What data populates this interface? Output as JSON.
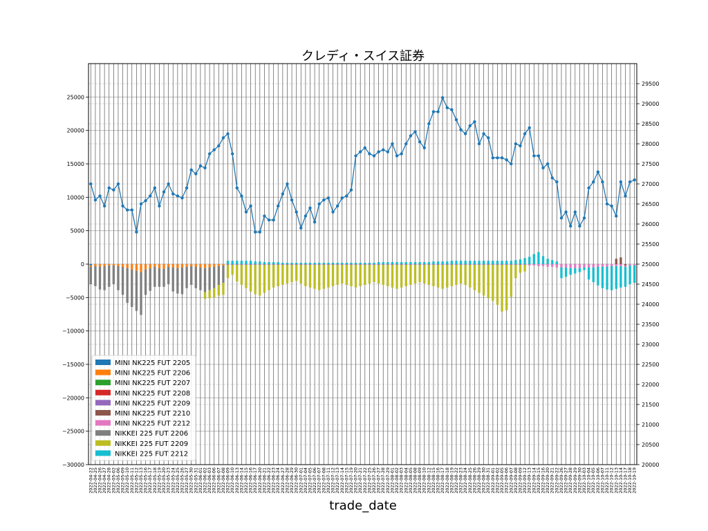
{
  "chart_data": {
    "type": "bar",
    "title": "クレディ・スイス証券",
    "xlabel": "trade_date",
    "ylabel": "",
    "ylim": [
      -30000,
      30000
    ],
    "y_ticks": [
      -30000,
      -25000,
      -20000,
      -15000,
      -10000,
      -5000,
      0,
      5000,
      10000,
      15000,
      20000,
      25000
    ],
    "y2lim": [
      20000,
      30000
    ],
    "y2_ticks": [
      20000,
      20500,
      21000,
      21500,
      22000,
      22500,
      23000,
      23500,
      24000,
      24500,
      25000,
      25500,
      26000,
      26500,
      27000,
      27500,
      28000,
      28500,
      29000,
      29500
    ],
    "grid": true,
    "stacked": true,
    "legend_position": "lower-left",
    "dates": [
      "2022-04-22",
      "2022-04-25",
      "2022-04-26",
      "2022-04-27",
      "2022-04-28",
      "2022-05-02",
      "2022-05-06",
      "2022-05-09",
      "2022-05-10",
      "2022-05-11",
      "2022-05-12",
      "2022-05-13",
      "2022-05-16",
      "2022-05-17",
      "2022-05-18",
      "2022-05-19",
      "2022-05-20",
      "2022-05-23",
      "2022-05-24",
      "2022-05-25",
      "2022-05-26",
      "2022-05-27",
      "2022-05-30",
      "2022-05-31",
      "2022-06-01",
      "2022-06-02",
      "2022-06-03",
      "2022-06-06",
      "2022-06-07",
      "2022-06-08",
      "2022-06-09",
      "2022-06-10",
      "2022-06-13",
      "2022-06-14",
      "2022-06-15",
      "2022-06-16",
      "2022-06-17",
      "2022-06-20",
      "2022-06-21",
      "2022-06-22",
      "2022-06-23",
      "2022-06-24",
      "2022-06-27",
      "2022-06-28",
      "2022-06-29",
      "2022-06-30",
      "2022-07-01",
      "2022-07-04",
      "2022-07-05",
      "2022-07-06",
      "2022-07-07",
      "2022-07-08",
      "2022-07-11",
      "2022-07-12",
      "2022-07-13",
      "2022-07-14",
      "2022-07-15",
      "2022-07-19",
      "2022-07-20",
      "2022-07-21",
      "2022-07-22",
      "2022-07-25",
      "2022-07-26",
      "2022-07-27",
      "2022-07-28",
      "2022-07-29",
      "2022-08-01",
      "2022-08-02",
      "2022-08-03",
      "2022-08-04",
      "2022-08-05",
      "2022-08-08",
      "2022-08-09",
      "2022-08-10",
      "2022-08-12",
      "2022-08-15",
      "2022-08-16",
      "2022-08-17",
      "2022-08-18",
      "2022-08-19",
      "2022-08-22",
      "2022-08-23",
      "2022-08-24",
      "2022-08-25",
      "2022-08-26",
      "2022-08-29",
      "2022-08-30",
      "2022-08-31",
      "2022-09-01",
      "2022-09-02",
      "2022-09-05",
      "2022-09-06",
      "2022-09-07",
      "2022-09-08",
      "2022-09-09",
      "2022-09-12",
      "2022-09-13",
      "2022-09-14",
      "2022-09-15",
      "2022-09-16",
      "2022-09-20",
      "2022-09-21",
      "2022-09-22",
      "2022-09-26",
      "2022-09-27",
      "2022-09-28",
      "2022-09-29",
      "2022-09-30",
      "2022-10-03",
      "2022-10-04",
      "2022-10-05",
      "2022-10-06",
      "2022-10-07",
      "2022-10-11",
      "2022-10-12",
      "2022-10-13",
      "2022-10-14",
      "2022-10-17",
      "2022-10-18",
      "2022-10-19"
    ],
    "bar_series": [
      {
        "name": "MINI NK225 FUT 2205",
        "color": "#1f77b4",
        "segments": [
          [
            0,
            1,
            [
              -200
            ]
          ]
        ]
      },
      {
        "name": "MINI NK225 FUT 2206",
        "color": "#ff7f0e",
        "segments": [
          [
            0,
            29,
            [
              -200,
              -300,
              -400,
              -300,
              -200,
              -200,
              -300,
              -400,
              -600,
              -800,
              -1000,
              -1200,
              -800,
              -600,
              -400,
              -600,
              -700,
              -400,
              -500,
              -600,
              -500,
              -400,
              -300,
              -400,
              -500,
              -600,
              -500,
              -400,
              -300,
              -200
            ]
          ]
        ]
      },
      {
        "name": "MINI NK225 FUT 2207",
        "color": "#2ca02c",
        "segments": []
      },
      {
        "name": "MINI NK225 FUT 2208",
        "color": "#d62728",
        "segments": []
      },
      {
        "name": "MINI NK225 FUT 2209",
        "color": "#9467bd",
        "segments": [
          [
            30,
            95,
            [
              -100,
              -100,
              -100,
              -100,
              -100,
              -100,
              -100,
              -100,
              -100,
              -100,
              -100,
              -100,
              -100,
              -100,
              -100,
              -100,
              -100,
              -100,
              -100,
              -100,
              -100,
              -100,
              -100,
              -100,
              -100,
              -100,
              -100,
              -100,
              -100,
              -100,
              -100,
              -100,
              -100,
              -100,
              -100,
              -100,
              -100,
              -100,
              -100,
              -100,
              -100,
              -100,
              -100,
              -100,
              -100,
              -100,
              -100,
              -100,
              -100,
              -100,
              -100,
              -100,
              -100,
              -100,
              -100,
              -100,
              -100,
              -100,
              -100,
              -100,
              -100,
              -100,
              -100,
              -100,
              -100,
              -100
            ]
          ]
        ]
      },
      {
        "name": "MINI NK225 FUT 2210",
        "color": "#8c564b",
        "segments": [
          [
            115,
            117,
            [
              800,
              1000,
              -200
            ]
          ]
        ]
      },
      {
        "name": "MINI NK225 FUT 2212",
        "color": "#e377c2",
        "segments": [
          [
            96,
            119,
            [
              -200,
              -200,
              -300,
              -300,
              -400,
              -400,
              -500,
              -500,
              -500,
              -600,
              -600,
              -600,
              -500,
              -500,
              -500,
              -400,
              -400,
              -400,
              -300,
              -300,
              -300,
              -200,
              -200,
              -200
            ]
          ]
        ]
      },
      {
        "name": "NIKKEI 225 FUT 2206",
        "color": "#7f7f7f",
        "segments": [
          [
            0,
            29,
            [
              -2600,
              -3000,
              -3400,
              -3600,
              -3200,
              -2800,
              -3600,
              -4200,
              -5200,
              -5600,
              -6000,
              -6400,
              -3800,
              -3400,
              -3000,
              -2800,
              -2700,
              -2600,
              -3600,
              -3800,
              -4000,
              -3200,
              -2800,
              -3200,
              -3400,
              -3600,
              -3400,
              -3200,
              -2800,
              -2600
            ]
          ]
        ]
      },
      {
        "name": "NIKKEI 225 FUT 2209",
        "color": "#bcbd22",
        "segments": [
          [
            25,
            95,
            [
              -1000,
              -1200,
              -1400,
              -1600,
              -1800,
              -2000,
              -1500,
              -2500,
              -3000,
              -3500,
              -4000,
              -4400,
              -4600,
              -4200,
              -3800,
              -3400,
              -3200,
              -3000,
              -2800,
              -2600,
              -2400,
              -2800,
              -3200,
              -3400,
              -3600,
              -3800,
              -3600,
              -3400,
              -3200,
              -3000,
              -2800,
              -3000,
              -3200,
              -3400,
              -3200,
              -3000,
              -2800,
              -2600,
              -2800,
              -3000,
              -3200,
              -3400,
              -3600,
              -3400,
              -3200,
              -3000,
              -2800,
              -2600,
              -2800,
              -3000,
              -3200,
              -3400,
              -3600,
              -3400,
              -3200,
              -3000,
              -2800,
              -3000,
              -3400,
              -3800,
              -4200,
              -4600,
              -5000,
              -5400,
              -6000,
              -7000,
              -6800,
              -4800,
              -2000,
              -1200,
              -1000
            ]
          ]
        ]
      },
      {
        "name": "NIKKEI 225 FUT 2212",
        "color": "#17becf",
        "segments": [
          [
            30,
            119,
            [
              500,
              500,
              500,
              500,
              500,
              500,
              400,
              400,
              300,
              300,
              300,
              300,
              200,
              200,
              200,
              200,
              200,
              200,
              200,
              200,
              200,
              200,
              200,
              200,
              200,
              200,
              200,
              200,
              200,
              200,
              200,
              200,
              200,
              300,
              300,
              300,
              300,
              300,
              300,
              300,
              300,
              300,
              300,
              300,
              300,
              400,
              400,
              400,
              400,
              500,
              500,
              500,
              500,
              500,
              500,
              500,
              500,
              500,
              500,
              500,
              500,
              500,
              500,
              600,
              700,
              900,
              1100,
              1500,
              1800,
              1200,
              800,
              600,
              400,
              -1600,
              -1400,
              -1000,
              -800,
              -600,
              -400,
              -1800,
              -2200,
              -2800,
              -3200,
              -3400,
              -3600,
              -3400,
              -3200,
              -3000,
              -2800,
              -2600
            ]
          ]
        ]
      }
    ],
    "line_series": {
      "name": "",
      "axis": "right",
      "color": "#1f77b4",
      "values": [
        27000,
        26600,
        26700,
        26450,
        26900,
        26850,
        27000,
        26450,
        26350,
        26350,
        25800,
        26500,
        26580,
        26700,
        26900,
        26450,
        26800,
        27000,
        26750,
        26700,
        26650,
        26900,
        27350,
        27250,
        27450,
        27400,
        27750,
        27850,
        27950,
        28150,
        28250,
        27750,
        26900,
        26700,
        26300,
        26450,
        25800,
        25800,
        26200,
        26100,
        26100,
        26450,
        26750,
        27000,
        26600,
        26300,
        25900,
        26200,
        26400,
        26050,
        26500,
        26600,
        26650,
        26300,
        26450,
        26650,
        26700,
        26850,
        27700,
        27800,
        27900,
        27750,
        27700,
        27800,
        27850,
        27800,
        28000,
        27700,
        27750,
        28000,
        28200,
        28300,
        28050,
        27900,
        28500,
        28800,
        28800,
        29150,
        28900,
        28850,
        28600,
        28350,
        28250,
        28450,
        28550,
        28000,
        28250,
        28150,
        27650,
        27650,
        27650,
        27600,
        27500,
        28000,
        27950,
        28250,
        28400,
        27700,
        27700,
        27400,
        27500,
        27150,
        27050,
        26150,
        26300,
        25950,
        26300,
        25950,
        26150,
        26900,
        27050,
        27300,
        27050,
        26500,
        26450,
        26200,
        27050,
        26700,
        27050,
        27100
      ]
    },
    "legend": [
      "MINI NK225 FUT 2205",
      "MINI NK225 FUT 2206",
      "MINI NK225 FUT 2207",
      "MINI NK225 FUT 2208",
      "MINI NK225 FUT 2209",
      "MINI NK225 FUT 2210",
      "MINI NK225 FUT 2212",
      "NIKKEI 225 FUT 2206",
      "NIKKEI 225 FUT 2209",
      "NIKKEI 225 FUT 2212"
    ]
  }
}
